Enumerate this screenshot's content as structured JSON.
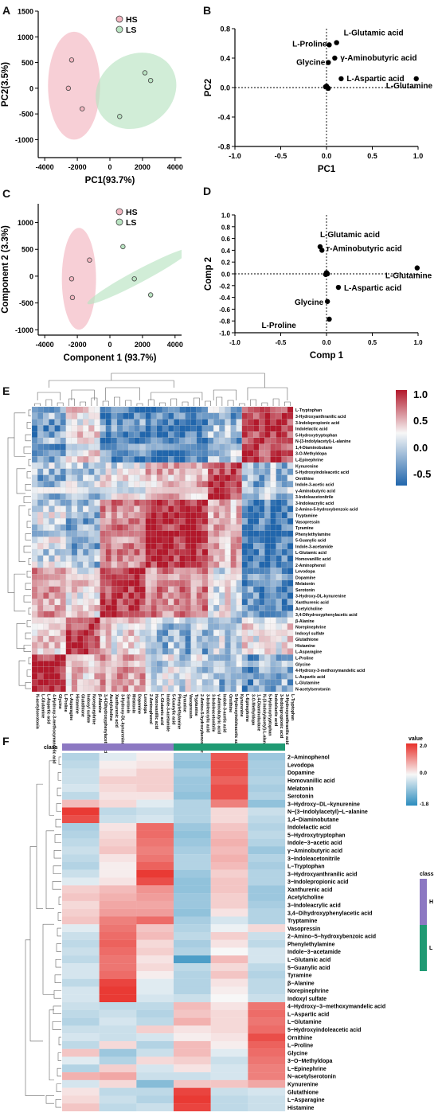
{
  "panel_letters": {
    "A": "A",
    "B": "B",
    "C": "C",
    "D": "D",
    "E": "E",
    "F": "F"
  },
  "chart_data": [
    {
      "panel": "A",
      "type": "scatter",
      "xlabel": "PC1(93.7%)",
      "ylabel": "PC2(3.5%)",
      "xlim": [
        -4400,
        4400
      ],
      "ylim": [
        -1350,
        1500
      ],
      "xticks": [
        -4000,
        -2000,
        0,
        2000,
        4000
      ],
      "yticks": [
        -1000,
        -500,
        0,
        500,
        1000,
        1500
      ],
      "legend": "top-right",
      "series": [
        {
          "name": "HS",
          "color": "#f2b6c0",
          "points": [
            [
              -2350,
              550
            ],
            [
              -2550,
              0
            ],
            [
              -1700,
              -400
            ]
          ],
          "ellipse": {
            "cx": -2200,
            "cy": 50,
            "rx": 1600,
            "ry": 1050,
            "angle": 0
          }
        },
        {
          "name": "LS",
          "color": "#b9e3c1",
          "points": [
            [
              2150,
              300
            ],
            [
              2500,
              150
            ],
            [
              600,
              -550
            ]
          ],
          "ellipse": {
            "cx": 1600,
            "cy": -50,
            "rx": 2600,
            "ry": 700,
            "angle": 35
          }
        }
      ]
    },
    {
      "panel": "B",
      "type": "scatter",
      "xlabel": "PC1",
      "ylabel": "PC2",
      "xlim": [
        -1.0,
        1.0
      ],
      "ylim": [
        -0.8,
        0.8
      ],
      "xticks": [
        -1.0,
        -0.5,
        0.0,
        0.5,
        1.0
      ],
      "yticks": [
        -0.8,
        -0.4,
        0.0,
        0.4,
        0.8
      ],
      "grid": false,
      "points": [
        {
          "label": "L-Glutamic acid",
          "x": 0.11,
          "y": 0.61
        },
        {
          "label": "L-Proline",
          "x": 0.03,
          "y": 0.58
        },
        {
          "label": "γ-Aminobutyric acid",
          "x": 0.09,
          "y": 0.4
        },
        {
          "label": "Glycine",
          "x": 0.02,
          "y": 0.34
        },
        {
          "label": "L-Aspartic acid",
          "x": 0.16,
          "y": 0.12
        },
        {
          "label": "L-Glutamine",
          "x": 0.98,
          "y": 0.12
        },
        {
          "label": "",
          "x": 0.0,
          "y": 0.02
        },
        {
          "label": "",
          "x": 0.01,
          "y": 0.0
        },
        {
          "label": "",
          "x": -0.01,
          "y": 0.01
        },
        {
          "label": "",
          "x": 0.02,
          "y": -0.01
        }
      ]
    },
    {
      "panel": "C",
      "type": "scatter",
      "xlabel": "Component 1 (93.7%)",
      "ylabel": "Component 2 (3.3%)",
      "xlim": [
        -4400,
        4400
      ],
      "ylim": [
        -1100,
        1350
      ],
      "xticks": [
        -4000,
        -2000,
        0,
        2000,
        4000
      ],
      "yticks": [
        -1000,
        -500,
        0,
        500,
        1000
      ],
      "legend": "top-right",
      "series": [
        {
          "name": "HS",
          "color": "#f2b6c0",
          "points": [
            [
              -1250,
              300
            ],
            [
              -2350,
              -50
            ],
            [
              -2300,
              -400
            ]
          ],
          "ellipse": {
            "cx": -1900,
            "cy": -50,
            "rx": 1050,
            "ry": 950,
            "angle": 0
          }
        },
        {
          "name": "LS",
          "color": "#b9e3c1",
          "points": [
            [
              800,
              550
            ],
            [
              1500,
              -50
            ],
            [
              2500,
              -350
            ]
          ],
          "ellipse": {
            "cx": 1800,
            "cy": 0,
            "rx": 3600,
            "ry": 120,
            "angle": 28
          }
        }
      ]
    },
    {
      "panel": "D",
      "type": "scatter",
      "xlabel": "Comp 1",
      "ylabel": "Comp 2",
      "xlim": [
        -1.0,
        1.0
      ],
      "ylim": [
        -1.0,
        1.0
      ],
      "xticks": [
        -1.0,
        -0.5,
        0.0,
        0.5,
        1.0
      ],
      "yticks": [
        -1.0,
        -0.8,
        -0.6,
        -0.4,
        -0.2,
        0.0,
        0.2,
        0.4,
        0.6,
        0.8,
        1.0
      ],
      "points": [
        {
          "label": "L-Glutamic acid",
          "x": -0.07,
          "y": 0.46
        },
        {
          "label": "r-Aminobutyric acid",
          "x": -0.05,
          "y": 0.4
        },
        {
          "label": "L-Glutamine",
          "x": 0.99,
          "y": 0.1
        },
        {
          "label": "L-Aspartic acid",
          "x": 0.13,
          "y": -0.23
        },
        {
          "label": "Glycine",
          "x": 0.01,
          "y": -0.47
        },
        {
          "label": "L-Proline",
          "x": 0.03,
          "y": -0.77
        },
        {
          "label": "",
          "x": 0.0,
          "y": 0.02
        },
        {
          "label": "",
          "x": 0.01,
          "y": 0.0
        },
        {
          "label": "",
          "x": -0.01,
          "y": -0.01
        }
      ]
    },
    {
      "panel": "E",
      "type": "heatmap",
      "colorbar": {
        "ticks": [
          "1.0",
          "0.5",
          "0.0",
          "-0.5"
        ],
        "colors": [
          "#b2182b",
          "#f7f7f7",
          "#2166ac"
        ]
      },
      "labels": [
        "L-Tryptophan",
        "3-Hydroxyanthranilic acid",
        "3-Indolepropionic acid",
        "Indolelactic acid",
        "5-Hydroxytryptophan",
        "N-(3-Indolylacetyl)-L-alanine",
        "1,4-Diaminobutane",
        "3-O-Methyldopa",
        "L-Epinephrine",
        "Kynurenine",
        "5-Hydroxyindoleacetic acid",
        "Ornithine",
        "Indole-3-acetic acid",
        "γ-Aminobutyric acid",
        "3-Indoleacetonitrile",
        "3-Indoleacrylic acid",
        "2-Amino-5-hydroxybenzoic acid",
        "Tryptamine",
        "Vasopressin",
        "Tyramine",
        "Phenylethylamine",
        "5-Guanylic acid",
        "Indole-3-acetamide",
        "L-Glutamic acid",
        "Homovanillic acid",
        "2-Aminophenol",
        "Levodopa",
        "Dopamine",
        "Melatonin",
        "Serotonin",
        "3-Hydroxy-DL-kynurenine",
        "Xanthurenic acid",
        "Acetylcholine",
        "3,4-Dihydroxyphenylacetic acid",
        "β-Alanine",
        "Norepinephrine",
        "Indoxyl sulfate",
        "Glutathione",
        "Histamine",
        "L-Asparagine",
        "L-Proline",
        "Glycine",
        "4-Hydroxy-3-methoxymandelic acid",
        "L-Aspartic acid",
        "L-Glutamine",
        "N-acetylserotonin"
      ],
      "x_labels": [
        "N-acetylserotonin",
        "L-Glutamine",
        "L-Aspartic acid",
        "4-Hydroxy-3-methoxymandelic acid",
        "Glycine",
        "L-Proline",
        "L-Asparagine",
        "Histamine",
        "Glutathione",
        "Indoxyl sulfate",
        "Norepinephrine",
        "β-Alanine",
        "3,4-Dihydroxyphenylacetic acid",
        "Acetylcholine",
        "Xanthurenic acid",
        "3-Hydroxy-DL-kynurenine",
        "Serotonin",
        "Melatonin",
        "Dopamine",
        "Levodopa",
        "2-Aminophenol",
        "Homovanillic acid",
        "L-Glutamic acid",
        "Indole-3-acetamide",
        "5-Guanylic acid",
        "Phenylethylamine",
        "Tyramine",
        "Vasopressin",
        "Tryptamine",
        "2-Amino-5-hydroxybenzoic acid",
        "3-Indoleacrylic acid",
        "3-Indoleacetonitrile",
        "γ-Aminobutyric acid",
        "Indole-3-acetic acid",
        "Ornithine",
        "5-Hydroxyindoleacetic acid",
        "Kynurenine",
        "L-Epinephrine",
        "3-O-Methyldopa",
        "1,4-Diaminobutane",
        "N-(3-Indolylacetyl)-L-alanine",
        "5-Hydroxytryptophan",
        "Indolelactic acid",
        "3-Indolepropionic acid",
        "3-Hydroxyanthranilic acid",
        "L-Tryptophan"
      ],
      "groups": [
        [
          0,
          5
        ],
        [
          6,
          11
        ],
        [
          12,
          19
        ],
        [
          20,
          30
        ],
        [
          31,
          36
        ],
        [
          37,
          45
        ]
      ],
      "group_corr": [
        [
          0.9,
          0.2,
          0.4,
          -0.1,
          -0.3,
          -0.4
        ],
        [
          0.2,
          0.8,
          0.1,
          -0.3,
          -0.2,
          0.1
        ],
        [
          0.4,
          0.1,
          0.8,
          0.5,
          0.0,
          -0.5
        ],
        [
          -0.1,
          -0.3,
          0.5,
          0.9,
          0.3,
          -0.6
        ],
        [
          -0.3,
          -0.2,
          0.0,
          0.3,
          0.8,
          -0.3
        ],
        [
          -0.4,
          0.1,
          -0.5,
          -0.6,
          -0.3,
          0.8
        ]
      ]
    },
    {
      "panel": "F",
      "type": "heatmap",
      "class_label": "class",
      "classes": [
        {
          "name": "H",
          "color": "#8c78c2"
        },
        {
          "name": "L",
          "color": "#1f9a73"
        }
      ],
      "colorbar": {
        "title": "value",
        "ticks": [
          "2.0",
          "0.0",
          "-1.8"
        ],
        "colors": [
          "#e8302a",
          "#f7f7f7",
          "#2b8cbe"
        ]
      },
      "columns": 6,
      "rows": [
        {
          "label": "2−Aminophenol",
          "values": [
            -0.6,
            -0.2,
            0.1,
            -0.8,
            1.6,
            -0.8
          ]
        },
        {
          "label": "Levodopa",
          "values": [
            -0.5,
            0.1,
            0.2,
            -0.9,
            1.7,
            -0.7
          ]
        },
        {
          "label": "Dopamine",
          "values": [
            -0.4,
            0.2,
            0.4,
            -0.7,
            1.7,
            -0.7
          ]
        },
        {
          "label": "Homovanillic acid",
          "values": [
            -0.4,
            0.4,
            0.4,
            -0.8,
            1.5,
            -0.6
          ]
        },
        {
          "label": "Melatonin",
          "values": [
            -0.3,
            0.3,
            0.4,
            -0.8,
            1.7,
            -0.7
          ]
        },
        {
          "label": "Serotonin",
          "values": [
            -0.5,
            0.2,
            0.2,
            -0.9,
            1.7,
            -0.6
          ]
        },
        {
          "label": "3−Hydroxy−DL−kynurenine",
          "values": [
            0.6,
            0.3,
            -0.2,
            -0.6,
            1.2,
            -0.9
          ]
        },
        {
          "label": "N−(3−Indolylacetyl)−L−alanine",
          "values": [
            1.9,
            -0.5,
            -0.4,
            -0.6,
            0.3,
            -0.4
          ]
        },
        {
          "label": "1,4−Diaminobutane",
          "values": [
            1.7,
            -0.4,
            -0.3,
            -0.6,
            0.3,
            -0.5
          ]
        },
        {
          "label": "Indolelactic acid",
          "values": [
            -0.7,
            0.2,
            1.4,
            -0.8,
            0.5,
            -0.6
          ]
        },
        {
          "label": "5−Hydroxytryptophan",
          "values": [
            -0.6,
            0.3,
            1.4,
            -0.9,
            0.6,
            -0.5
          ]
        },
        {
          "label": "Indole−3−acetic acid",
          "values": [
            -0.5,
            0.4,
            1.3,
            -0.8,
            0.7,
            -0.6
          ]
        },
        {
          "label": "γ−Aminobutyric acid",
          "values": [
            -0.4,
            0.5,
            1.2,
            -0.7,
            0.6,
            -0.8
          ]
        },
        {
          "label": "3−Indoleacetonitrile",
          "values": [
            -0.5,
            0.2,
            1.3,
            -0.6,
            0.7,
            -0.6
          ]
        },
        {
          "label": "L−Tryptophan",
          "values": [
            -0.6,
            0.1,
            1.5,
            -0.6,
            0.6,
            -0.7
          ]
        },
        {
          "label": "3−Hydroxyanthranilic acid",
          "values": [
            -0.4,
            0.1,
            1.9,
            -0.8,
            0.4,
            -0.6
          ]
        },
        {
          "label": "3−Indolepropionic acid",
          "values": [
            -0.2,
            0.2,
            1.7,
            -0.9,
            0.5,
            -0.6
          ]
        },
        {
          "label": "Xanthurenic acid",
          "values": [
            0.4,
            0.6,
            1.0,
            -0.9,
            0.5,
            -0.8
          ]
        },
        {
          "label": "Acetylcholine",
          "values": [
            0.5,
            0.7,
            0.9,
            -0.8,
            0.4,
            -0.8
          ]
        },
        {
          "label": "3−Indoleacrylic acid",
          "values": [
            0.3,
            0.8,
            0.8,
            -0.8,
            0.4,
            -0.7
          ]
        },
        {
          "label": "3,4−Dihydroxyphenylacetic acid",
          "values": [
            0.4,
            0.9,
            0.9,
            -0.9,
            0.2,
            -0.6
          ]
        },
        {
          "label": "Tryptamine",
          "values": [
            0.5,
            1.2,
            1.4,
            -0.7,
            -0.3,
            -0.6
          ]
        },
        {
          "label": "Vasopressin",
          "values": [
            -0.2,
            1.3,
            0.5,
            -0.6,
            -0.1,
            0.3
          ]
        },
        {
          "label": "2−Amino−5−hydroxybenzoic acid",
          "values": [
            -0.4,
            1.4,
            0.6,
            -0.5,
            0.4,
            -0.4
          ]
        },
        {
          "label": "Phenylethylamine",
          "values": [
            -0.5,
            1.5,
            0.3,
            -0.7,
            0.2,
            -0.5
          ]
        },
        {
          "label": "Indole−3−acetamide",
          "values": [
            -0.4,
            1.4,
            0.4,
            -0.6,
            0.0,
            -0.3
          ]
        },
        {
          "label": "L−Glutamic acid",
          "values": [
            -0.5,
            1.3,
            0.2,
            -1.5,
            0.6,
            -0.3
          ]
        },
        {
          "label": "5−Guanylic acid",
          "values": [
            -0.3,
            1.3,
            0.3,
            -0.5,
            0.3,
            -0.5
          ]
        },
        {
          "label": "Tyramine",
          "values": [
            -0.3,
            1.4,
            0.1,
            -0.6,
            0.5,
            -0.6
          ]
        },
        {
          "label": "β−Alanine",
          "values": [
            -0.5,
            1.8,
            -0.2,
            -0.6,
            0.2,
            -0.5
          ]
        },
        {
          "label": "Norepinephrine",
          "values": [
            -0.3,
            1.9,
            -0.2,
            -0.6,
            0.1,
            -0.5
          ]
        },
        {
          "label": "Indoxyl sulfate",
          "values": [
            -0.3,
            1.9,
            -0.3,
            -0.4,
            0.0,
            -0.4
          ]
        },
        {
          "label": "4−Hydroxy−3−methoxymandelic acid",
          "values": [
            -0.4,
            -0.5,
            -0.5,
            0.6,
            0.2,
            1.3
          ]
        },
        {
          "label": "L−Aspartic acid",
          "values": [
            -0.5,
            -0.4,
            -0.6,
            0.5,
            0.3,
            1.4
          ]
        },
        {
          "label": "L−Glutamine",
          "values": [
            -0.6,
            -0.3,
            -0.5,
            0.7,
            0.3,
            1.3
          ]
        },
        {
          "label": "5−Hydroxyindoleacetic acid",
          "values": [
            -0.4,
            -0.4,
            0.4,
            0.2,
            0.3,
            1.4
          ]
        },
        {
          "label": "Ornithine",
          "values": [
            -0.3,
            -0.4,
            -0.3,
            0.1,
            0.2,
            1.7
          ]
        },
        {
          "label": "L−Proline",
          "values": [
            -0.5,
            0.3,
            -0.6,
            0.6,
            0.1,
            1.5
          ]
        },
        {
          "label": "Glycine",
          "values": [
            0.5,
            -0.8,
            -0.4,
            0.6,
            -0.2,
            1.4
          ]
        },
        {
          "label": "3−O−Methyldopa",
          "values": [
            -0.2,
            -0.6,
            0.3,
            0.4,
            -0.4,
            1.3
          ]
        },
        {
          "label": "L−Epinephrine",
          "values": [
            -0.6,
            0.4,
            -0.3,
            0.2,
            -0.3,
            1.2
          ]
        },
        {
          "label": "N−acetylserotonin",
          "values": [
            0.7,
            0.8,
            -0.4,
            -0.4,
            -0.3,
            1.2
          ]
        },
        {
          "label": "Kynurenine",
          "values": [
            -0.3,
            0.3,
            -1.0,
            0.5,
            0.5,
            0.8
          ]
        },
        {
          "label": "Glutathione",
          "values": [
            0.2,
            -0.5,
            -0.5,
            1.8,
            -0.4,
            -0.3
          ]
        },
        {
          "label": "L−Asparagine",
          "values": [
            0.3,
            -0.4,
            -0.6,
            1.9,
            -0.5,
            -0.4
          ]
        },
        {
          "label": "Histamine",
          "values": [
            0.5,
            -0.5,
            -0.4,
            1.8,
            -0.5,
            -0.4
          ]
        }
      ]
    }
  ]
}
